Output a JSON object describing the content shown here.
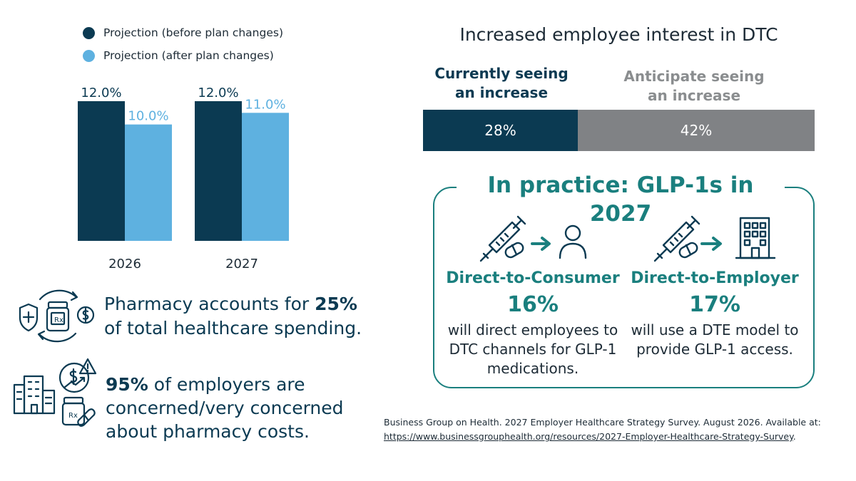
{
  "colors": {
    "navy": "#0b3a52",
    "light_blue": "#5eb1e0",
    "teal": "#1a7f7e",
    "gray": "#808285",
    "gray_text": "#8a8d8f"
  },
  "chart_data": {
    "type": "bar",
    "categories": [
      "2026",
      "2027"
    ],
    "series": [
      {
        "name": "Projection (before plan changes)",
        "values": [
          12.0,
          12.0
        ],
        "labels": [
          "12.0%",
          "12.0%"
        ],
        "color": "#0b3a52"
      },
      {
        "name": "Projection (after plan changes)",
        "values": [
          10.0,
          11.0
        ],
        "labels": [
          "10.0%",
          "11.0%"
        ],
        "color": "#5eb1e0"
      }
    ],
    "title": "",
    "xlabel": "",
    "ylabel": "",
    "ylim": [
      0,
      12.0
    ],
    "grid": false,
    "legend": "top-left"
  },
  "stats": {
    "pharmacy_prefix": "Pharmacy accounts for ",
    "pharmacy_value": "25%",
    "pharmacy_suffix": " of total healthcare spending.",
    "employers_value": "95%",
    "employers_suffix": " of employers are concerned/very concerned about pharmacy costs."
  },
  "dtc": {
    "title": "Increased employee interest in DTC",
    "current_label": "Currently seeing an increase",
    "current_value": 28,
    "current_text": "28%",
    "anticipate_label": "Anticipate seeing an increase",
    "anticipate_value": 42,
    "anticipate_text": "42%"
  },
  "practice": {
    "title": "In practice: GLP-1s in 2027",
    "consumer": {
      "title": "Direct-to-Consumer",
      "pct": "16%",
      "desc": "will direct employees to DTC channels for GLP-1 medications."
    },
    "employer": {
      "title": "Direct-to-Employer",
      "pct": "17%",
      "desc": "will use a DTE model to provide GLP-1 access."
    }
  },
  "citation": {
    "text": "Business Group on Health. 2027 Employer Healthcare Strategy Survey. August 2026. Available at:",
    "link": "https://www.businessgrouphealth.org/resources/2027-Employer-Healthcare-Strategy-Survey",
    "period": "."
  }
}
